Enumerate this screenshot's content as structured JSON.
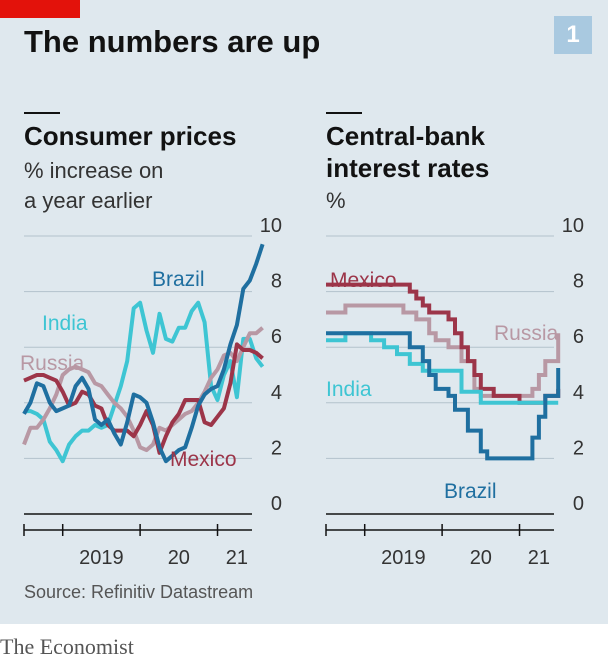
{
  "header": {
    "title": "The numbers are up",
    "badge": "1"
  },
  "colors": {
    "brazil": "#1f6fa0",
    "india": "#3ec5d3",
    "russia": "#b898a4",
    "mexico": "#9c3549",
    "accent": "#e3120b"
  },
  "chart_data": [
    {
      "type": "line",
      "title": "Consumer prices",
      "subtitle": [
        "% increase on",
        "a year earlier"
      ],
      "ylim": [
        0,
        10
      ],
      "yticks": [
        "0",
        "2",
        "4",
        "6",
        "8",
        "10"
      ],
      "xlim": [
        2018.5,
        2021.833
      ],
      "xticks": [
        "2019",
        "20",
        "21"
      ],
      "grid": true,
      "series": [
        {
          "name": "Brazil",
          "color_key": "brazil",
          "x": [
            2018.5,
            2018.583,
            2018.667,
            2018.75,
            2018.833,
            2018.917,
            2019.0,
            2019.083,
            2019.167,
            2019.25,
            2019.333,
            2019.417,
            2019.5,
            2019.583,
            2019.667,
            2019.75,
            2019.833,
            2019.917,
            2020.0,
            2020.083,
            2020.167,
            2020.25,
            2020.333,
            2020.417,
            2020.5,
            2020.583,
            2020.667,
            2020.75,
            2020.833,
            2020.917,
            2021.0,
            2021.083,
            2021.167,
            2021.25,
            2021.333,
            2021.417,
            2021.5,
            2021.583
          ],
          "values": [
            3.6,
            4.0,
            4.7,
            4.6,
            4.0,
            3.7,
            3.8,
            3.9,
            4.6,
            4.9,
            4.5,
            3.4,
            3.2,
            3.4,
            2.9,
            2.5,
            3.3,
            4.3,
            4.2,
            4.0,
            3.3,
            2.4,
            1.9,
            2.1,
            2.3,
            2.4,
            3.1,
            3.9,
            4.3,
            4.5,
            4.6,
            5.2,
            6.1,
            6.8,
            8.1,
            8.4,
            9.0,
            9.7
          ]
        },
        {
          "name": "India",
          "color_key": "india",
          "x": [
            2018.5,
            2018.583,
            2018.667,
            2018.75,
            2018.833,
            2018.917,
            2019.0,
            2019.083,
            2019.167,
            2019.25,
            2019.333,
            2019.417,
            2019.5,
            2019.583,
            2019.667,
            2019.75,
            2019.833,
            2019.917,
            2020.0,
            2020.083,
            2020.167,
            2020.25,
            2020.333,
            2020.417,
            2020.5,
            2020.583,
            2020.667,
            2020.75,
            2020.833,
            2020.917,
            2021.0,
            2021.083,
            2021.167,
            2021.25,
            2021.333,
            2021.417,
            2021.5,
            2021.583
          ],
          "values": [
            3.7,
            3.7,
            3.6,
            3.4,
            2.6,
            2.3,
            1.9,
            2.5,
            2.8,
            3.0,
            3.0,
            3.2,
            3.1,
            3.2,
            3.9,
            4.6,
            5.5,
            7.4,
            7.6,
            6.6,
            5.8,
            7.2,
            6.3,
            6.2,
            6.7,
            6.7,
            7.3,
            7.6,
            6.9,
            4.6,
            4.1,
            5.0,
            5.5,
            4.2,
            6.3,
            6.3,
            5.6,
            5.3
          ]
        },
        {
          "name": "Russia",
          "color_key": "russia",
          "x": [
            2018.5,
            2018.583,
            2018.667,
            2018.75,
            2018.833,
            2018.917,
            2019.0,
            2019.083,
            2019.167,
            2019.25,
            2019.333,
            2019.417,
            2019.5,
            2019.583,
            2019.667,
            2019.75,
            2019.833,
            2019.917,
            2020.0,
            2020.083,
            2020.167,
            2020.25,
            2020.333,
            2020.417,
            2020.5,
            2020.583,
            2020.667,
            2020.75,
            2020.833,
            2020.917,
            2021.0,
            2021.083,
            2021.167,
            2021.25,
            2021.333,
            2021.417,
            2021.5,
            2021.583
          ],
          "values": [
            2.5,
            3.1,
            3.1,
            3.4,
            3.8,
            4.3,
            5.0,
            5.2,
            5.3,
            5.2,
            5.1,
            4.7,
            4.6,
            4.3,
            4.0,
            3.8,
            3.5,
            3.0,
            2.4,
            2.3,
            2.5,
            3.1,
            3.0,
            3.2,
            3.4,
            3.6,
            3.7,
            4.0,
            4.4,
            4.9,
            5.2,
            5.7,
            5.8,
            5.5,
            6.0,
            6.5,
            6.5,
            6.7
          ]
        },
        {
          "name": "Mexico",
          "color_key": "mexico",
          "x": [
            2018.5,
            2018.583,
            2018.667,
            2018.75,
            2018.833,
            2018.917,
            2019.0,
            2019.083,
            2019.167,
            2019.25,
            2019.333,
            2019.417,
            2019.5,
            2019.583,
            2019.667,
            2019.75,
            2019.833,
            2019.917,
            2020.0,
            2020.083,
            2020.167,
            2020.25,
            2020.333,
            2020.417,
            2020.5,
            2020.583,
            2020.667,
            2020.75,
            2020.833,
            2020.917,
            2021.0,
            2021.083,
            2021.167,
            2021.25,
            2021.333,
            2021.417,
            2021.5,
            2021.583
          ],
          "values": [
            4.8,
            4.9,
            5.0,
            5.0,
            4.9,
            4.8,
            4.4,
            3.9,
            4.0,
            4.4,
            4.3,
            3.9,
            3.8,
            3.2,
            3.0,
            3.0,
            3.0,
            2.8,
            3.2,
            3.7,
            3.2,
            2.2,
            2.8,
            3.3,
            3.6,
            4.1,
            4.1,
            4.1,
            3.3,
            3.2,
            3.5,
            3.8,
            4.7,
            6.1,
            5.9,
            5.9,
            5.8,
            5.6
          ]
        }
      ],
      "labels": [
        "Brazil",
        "India",
        "Russia",
        "Mexico"
      ]
    },
    {
      "type": "line",
      "title": "Central-bank interest rates",
      "title_lines": [
        "Central-bank",
        "interest rates"
      ],
      "subtitle": [
        "%"
      ],
      "ylim": [
        0,
        10
      ],
      "yticks": [
        "0",
        "2",
        "4",
        "6",
        "8",
        "10"
      ],
      "xlim": [
        2018.5,
        2021.833
      ],
      "xticks": [
        "2019",
        "20",
        "21"
      ],
      "grid": true,
      "step": true,
      "series": [
        {
          "name": "Mexico",
          "color_key": "mexico",
          "x": [
            2018.5,
            2019.5,
            2019.583,
            2019.667,
            2019.75,
            2019.833,
            2019.917,
            2020.083,
            2020.167,
            2020.25,
            2020.333,
            2020.417,
            2020.5,
            2020.583,
            2020.667,
            2020.75,
            2020.917,
            2021.0,
            2021.083,
            2021.25,
            2021.333,
            2021.417,
            2021.5
          ],
          "values": [
            8.25,
            8.25,
            8.0,
            7.75,
            7.5,
            7.25,
            7.25,
            7.0,
            6.5,
            6.0,
            5.5,
            5.0,
            4.5,
            4.5,
            4.25,
            4.25,
            4.25,
            4.0,
            4.0,
            4.0,
            4.25,
            4.25,
            4.5
          ]
        },
        {
          "name": "Russia",
          "color_key": "russia",
          "x": [
            2018.5,
            2018.75,
            2019.417,
            2019.5,
            2019.667,
            2019.833,
            2019.917,
            2020.083,
            2020.25,
            2020.417,
            2020.5,
            2020.583,
            2020.917,
            2021.083,
            2021.167,
            2021.25,
            2021.333,
            2021.5
          ],
          "values": [
            7.25,
            7.5,
            7.5,
            7.25,
            7.0,
            6.5,
            6.25,
            6.0,
            5.5,
            4.5,
            4.25,
            4.25,
            4.25,
            4.25,
            4.5,
            5.0,
            5.5,
            6.5
          ]
        },
        {
          "name": "India",
          "color_key": "india",
          "x": [
            2018.5,
            2018.75,
            2019.083,
            2019.25,
            2019.417,
            2019.583,
            2019.75,
            2019.917,
            2020.083,
            2020.25,
            2020.333,
            2020.5,
            2020.75,
            2021.0,
            2021.5
          ],
          "values": [
            6.25,
            6.5,
            6.25,
            6.0,
            5.75,
            5.4,
            5.15,
            5.15,
            5.15,
            4.4,
            4.4,
            4.0,
            4.0,
            4.0,
            4.0
          ]
        },
        {
          "name": "Brazil",
          "color_key": "brazil",
          "x": [
            2018.5,
            2019.5,
            2019.583,
            2019.75,
            2019.833,
            2019.917,
            2020.083,
            2020.167,
            2020.333,
            2020.5,
            2020.583,
            2020.75,
            2021.083,
            2021.167,
            2021.25,
            2021.333,
            2021.417,
            2021.5
          ],
          "values": [
            6.5,
            6.5,
            6.0,
            5.5,
            5.0,
            4.5,
            4.25,
            3.75,
            3.0,
            2.25,
            2.0,
            2.0,
            2.0,
            2.75,
            3.5,
            4.25,
            4.25,
            5.25
          ]
        }
      ],
      "labels": [
        "Mexico",
        "Russia",
        "India",
        "Brazil"
      ]
    }
  ],
  "source": "Source: Refinitiv Datastream",
  "footer": "The Economist"
}
